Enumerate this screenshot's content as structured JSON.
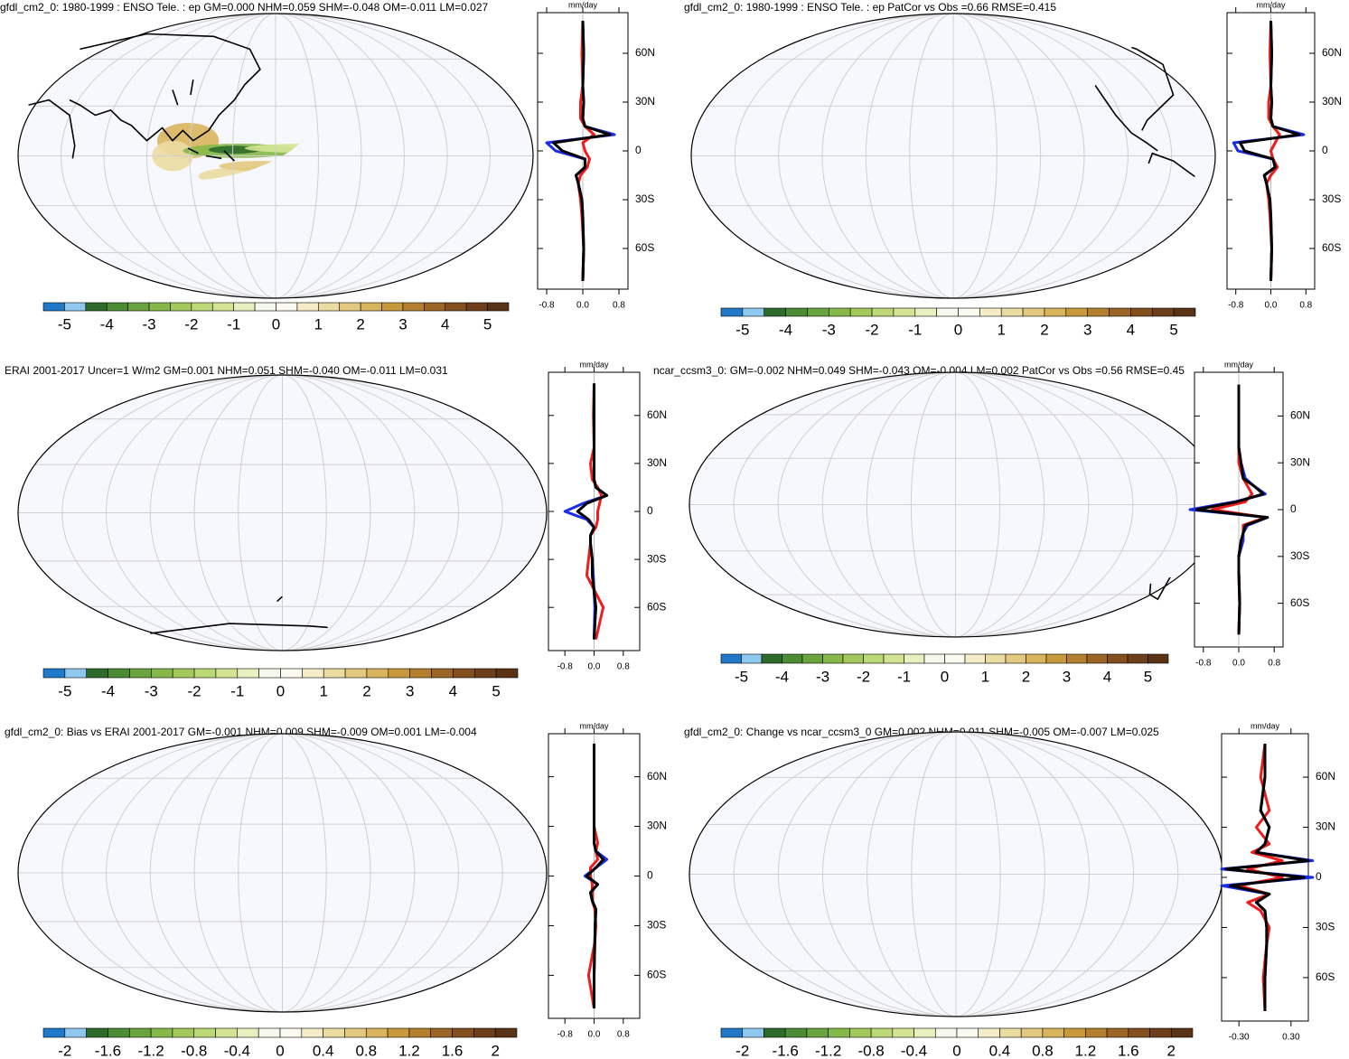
{
  "colors": [
    "#1f78c8",
    "#8fc8ef",
    "#2e6b2a",
    "#4b8c34",
    "#6aa43e",
    "#86b84a",
    "#a3c95c",
    "#bdd877",
    "#d3e594",
    "#e7f0be",
    "#f5f8ec",
    "#fbfaf0",
    "#f4edc7",
    "#ebdca2",
    "#e2c97f",
    "#d8b45c",
    "#c99a3c",
    "#b47f2e",
    "#9b6526",
    "#834f1f",
    "#6c3f1a",
    "#583316"
  ],
  "chart_data": [
    {
      "type": "line",
      "title": "gfdl_cm2_0: 1980-1999 : ENSO Tele. : ep GM=0.000 NHM=0.059 SHM=-0.048 OM=-0.011 LM=0.027",
      "xlabel": "mm/day",
      "colorbar": {
        "lim": [
          -5.5,
          5.5
        ],
        "ticks": [
          -5,
          -4,
          -3,
          -2,
          -1,
          0,
          1,
          2,
          3,
          4,
          5
        ]
      },
      "xlim": [
        -1,
        1
      ],
      "xticks": [
        -0.8,
        {
          "value": 0,
          "label": "0.0"
        },
        0.8
      ],
      "ylim": [
        -85,
        85
      ],
      "yticks": [
        {
          "value": 60,
          "label": "60N"
        },
        {
          "value": 30,
          "label": "30N"
        },
        0,
        {
          "value": -30,
          "label": "30S"
        },
        {
          "value": -60,
          "label": "60S"
        }
      ],
      "y": [
        -80,
        -60,
        -40,
        -30,
        -20,
        -15,
        -10,
        -5,
        0,
        5,
        10,
        15,
        20,
        30,
        40,
        60,
        80
      ],
      "series": [
        {
          "color": "#1a2ee8",
          "values": [
            0,
            0.02,
            0,
            -0.02,
            -0.1,
            -0.15,
            0.05,
            0.05,
            -0.6,
            -0.8,
            0.7,
            0.05,
            0,
            0.02,
            0,
            0.02,
            0
          ]
        },
        {
          "color": "#ee1c1c",
          "values": [
            0,
            0.02,
            -0.02,
            -0.05,
            -0.1,
            -0.05,
            0.1,
            0.15,
            0.05,
            0,
            0.25,
            0.05,
            -0.05,
            -0.05,
            0,
            -0.02,
            0
          ]
        },
        {
          "color": "#000000",
          "values": [
            0,
            0.02,
            0,
            -0.02,
            -0.1,
            -0.15,
            0.05,
            0.05,
            -0.45,
            -0.65,
            0.6,
            0.05,
            0,
            0.02,
            0,
            0.02,
            0
          ]
        }
      ]
    },
    {
      "type": "line",
      "title": "gfdl_cm2_0: 1980-1999 : ENSO Tele. : ep PatCor vs Obs =0.66 RMSE=0.415",
      "xlabel": "mm/day",
      "colorbar": {
        "lim": [
          -5.5,
          5.5
        ],
        "ticks": [
          -5,
          -4,
          -3,
          -2,
          -1,
          0,
          1,
          2,
          3,
          4,
          5
        ]
      },
      "xlim": [
        -1,
        1
      ],
      "xticks": [
        -0.8,
        {
          "value": 0,
          "label": "0.0"
        },
        0.8
      ],
      "ylim": [
        -85,
        85
      ],
      "yticks": [
        {
          "value": 60,
          "label": "60N"
        },
        {
          "value": 30,
          "label": "30N"
        },
        0,
        {
          "value": -30,
          "label": "30S"
        },
        {
          "value": -60,
          "label": "60S"
        }
      ],
      "y": [
        -80,
        -60,
        -40,
        -30,
        -20,
        -15,
        -10,
        -5,
        0,
        5,
        10,
        15,
        20,
        30,
        40,
        60,
        80
      ],
      "series": [
        {
          "color": "#1a2ee8",
          "values": [
            0,
            0.02,
            0,
            -0.02,
            -0.1,
            -0.15,
            0.1,
            0.05,
            -0.75,
            -0.85,
            0.75,
            0.05,
            0,
            0.02,
            0,
            0.02,
            0
          ]
        },
        {
          "color": "#ee1c1c",
          "values": [
            0,
            0.02,
            -0.02,
            -0.05,
            -0.1,
            0,
            0.15,
            0.05,
            0,
            0.1,
            0.2,
            0.05,
            -0.05,
            -0.05,
            0,
            -0.02,
            0
          ]
        },
        {
          "color": "#000000",
          "values": [
            0,
            0.02,
            0,
            -0.02,
            -0.1,
            -0.15,
            0.1,
            0.05,
            -0.6,
            -0.7,
            0.65,
            0.05,
            0,
            0.02,
            0,
            0.02,
            0
          ]
        }
      ]
    },
    {
      "type": "line",
      "title": "ERAI 2001-2017 Uncer=1 W/m2 GM=0.001 NHM=0.051 SHM=-0.040 OM=-0.011 LM=0.031",
      "xlabel": "mm/day",
      "colorbar": {
        "lim": [
          -5.5,
          5.5
        ],
        "ticks": [
          -5,
          -4,
          -3,
          -2,
          -1,
          0,
          1,
          2,
          3,
          4,
          5
        ]
      },
      "xlim": [
        -1.25,
        1.25
      ],
      "xticks": [
        -0.8,
        {
          "value": 0,
          "label": "0.0"
        },
        0.8
      ],
      "ylim": [
        -87,
        87
      ],
      "yticks": [
        {
          "value": 60,
          "label": "60N"
        },
        {
          "value": 30,
          "label": "30N"
        },
        0,
        {
          "value": -30,
          "label": "30S"
        },
        {
          "value": -60,
          "label": "60S"
        }
      ],
      "y": [
        -80,
        -60,
        -40,
        -30,
        -20,
        -15,
        -10,
        -5,
        0,
        5,
        10,
        15,
        20,
        30,
        40,
        60,
        80
      ],
      "series": [
        {
          "color": "#1a2ee8",
          "values": [
            0,
            0.02,
            -0.02,
            -0.05,
            -0.1,
            -0.1,
            0,
            -0.2,
            -0.8,
            -0.3,
            0.35,
            0.05,
            0,
            0,
            0,
            0,
            0
          ]
        },
        {
          "color": "#ee1c1c",
          "values": [
            0.05,
            0.25,
            -0.2,
            -0.15,
            -0.1,
            -0.1,
            0.05,
            0.1,
            0.1,
            0.15,
            0.2,
            0.1,
            -0.05,
            -0.1,
            0,
            -0.02,
            0
          ]
        },
        {
          "color": "#000000",
          "values": [
            0,
            0.05,
            -0.05,
            -0.05,
            -0.1,
            -0.1,
            0,
            -0.15,
            -0.45,
            -0.2,
            0.35,
            0.05,
            0,
            0,
            0,
            0,
            0
          ]
        }
      ]
    },
    {
      "type": "line",
      "title": "ncar_ccsm3_0: GM=-0.002 NHM=0.049 SHM=-0.043 OM=-0.004 LM=0.002 PatCor vs Obs =0.56 RMSE=0.45",
      "xlabel": "mm/day",
      "colorbar": {
        "lim": [
          -5.5,
          5.5
        ],
        "ticks": [
          -5,
          -4,
          -3,
          -2,
          -1,
          0,
          1,
          2,
          3,
          4,
          5
        ]
      },
      "xlim": [
        -1,
        1
      ],
      "xticks": [
        -0.8,
        {
          "value": 0,
          "label": "0.0"
        },
        0.8
      ],
      "ylim": [
        -88,
        88
      ],
      "yticks": [
        {
          "value": 60,
          "label": "60N"
        },
        {
          "value": 30,
          "label": "30N"
        },
        0,
        {
          "value": -30,
          "label": "30S"
        },
        {
          "value": -60,
          "label": "60S"
        }
      ],
      "y": [
        -80,
        -60,
        -40,
        -30,
        -20,
        -15,
        -10,
        -5,
        0,
        5,
        10,
        15,
        20,
        30,
        40,
        60,
        80
      ],
      "series": [
        {
          "color": "#1a2ee8",
          "values": [
            0,
            0.02,
            0,
            0,
            0.1,
            0.1,
            0.2,
            0.65,
            -1.1,
            -0.1,
            0.6,
            0.35,
            0.15,
            0.05,
            0,
            0,
            0
          ]
        },
        {
          "color": "#ee1c1c",
          "values": [
            0,
            0.02,
            0,
            0,
            0.05,
            0.1,
            0.1,
            0.6,
            -0.6,
            0.15,
            0.3,
            0.2,
            0.1,
            0,
            0,
            0,
            0
          ]
        },
        {
          "color": "#000000",
          "values": [
            0,
            0.02,
            0,
            0,
            0.05,
            0.1,
            0.15,
            0.65,
            -0.95,
            -0.05,
            0.55,
            0.35,
            0.1,
            0.05,
            0,
            0,
            0
          ]
        }
      ]
    },
    {
      "type": "line",
      "title": "gfdl_cm2_0: Bias vs ERAI 2001-2017 GM=-0.001 NHM=0.009 SHM=-0.009 OM=0.001 LM=-0.004",
      "xlabel": "mm/day",
      "colorbar": {
        "lim": [
          -2.2,
          2.2
        ],
        "ticks": [
          -2,
          -1.6,
          -1.2,
          -0.8,
          -0.4,
          0,
          0.4,
          0.8,
          1.2,
          1.6,
          2
        ]
      },
      "xlim": [
        -1.25,
        1.25
      ],
      "xticks": [
        -0.8,
        {
          "value": 0,
          "label": "0.0"
        },
        0.8
      ],
      "ylim": [
        -86,
        86
      ],
      "yticks": [
        {
          "value": 60,
          "label": "60N"
        },
        {
          "value": 30,
          "label": "30N"
        },
        0,
        {
          "value": -30,
          "label": "30S"
        },
        {
          "value": -60,
          "label": "60S"
        }
      ],
      "y": [
        -80,
        -60,
        -40,
        -30,
        -20,
        -15,
        -10,
        -5,
        0,
        5,
        10,
        15,
        20,
        30,
        40,
        60,
        80
      ],
      "series": [
        {
          "color": "#1a2ee8",
          "values": [
            0,
            0,
            0.02,
            0.03,
            0.05,
            -0.05,
            -0.1,
            0.1,
            -0.25,
            0.05,
            0.35,
            0.05,
            0,
            0,
            0,
            0,
            0
          ]
        },
        {
          "color": "#ee1c1c",
          "values": [
            0,
            -0.15,
            0.02,
            0.05,
            0.02,
            -0.05,
            -0.05,
            -0.05,
            -0.1,
            -0.1,
            0.1,
            0.05,
            0.1,
            0,
            0,
            0,
            0
          ]
        },
        {
          "color": "#000000",
          "values": [
            0,
            0,
            0.02,
            0.03,
            0.05,
            -0.05,
            -0.1,
            0.1,
            -0.2,
            0.05,
            0.25,
            0.05,
            0,
            0,
            0,
            0,
            0
          ]
        }
      ]
    },
    {
      "type": "line",
      "title": "gfdl_cm2_0: Change vs ncar_ccsm3_0 GM=0.002 NHM=0.011 SHM=-0.005 OM=-0.007 LM=0.025",
      "xlabel": "mm/day",
      "colorbar": {
        "lim": [
          -2.2,
          2.2
        ],
        "ticks": [
          -2,
          -1.6,
          -1.2,
          -0.8,
          -0.4,
          0,
          0.4,
          0.8,
          1.2,
          1.6,
          2
        ]
      },
      "xlim": [
        -0.5,
        0.5
      ],
      "xticks": [
        {
          "value": -0.3,
          "label": "-0.30"
        },
        {
          "value": 0.3,
          "label": "0.30"
        }
      ],
      "ylim": [
        -86,
        86
      ],
      "yticks": [
        {
          "value": 60,
          "label": "60N"
        },
        {
          "value": 30,
          "label": "30N"
        },
        0,
        {
          "value": -30,
          "label": "30S"
        },
        {
          "value": -60,
          "label": "60S"
        }
      ],
      "y": [
        -80,
        -60,
        -40,
        -30,
        -20,
        -15,
        -10,
        -5,
        0,
        5,
        10,
        15,
        20,
        30,
        40,
        60,
        80
      ],
      "series": [
        {
          "color": "#1a2ee8",
          "values": [
            0,
            0,
            0.02,
            0.02,
            0,
            -0.1,
            0.05,
            -0.5,
            0.55,
            -0.5,
            0.55,
            -0.1,
            0,
            0.05,
            -0.05,
            0,
            0
          ]
        },
        {
          "color": "#ee1c1c",
          "values": [
            0,
            -0.02,
            0.02,
            0.05,
            -0.05,
            -0.2,
            0.05,
            -0.3,
            0.2,
            -0.2,
            0.2,
            -0.15,
            0.05,
            -0.1,
            0.05,
            -0.05,
            0
          ]
        },
        {
          "color": "#000000",
          "values": [
            0,
            0,
            0.02,
            0.02,
            0,
            -0.1,
            0.05,
            -0.4,
            0.45,
            -0.45,
            0.5,
            -0.1,
            0,
            0.05,
            -0.05,
            0,
            0
          ]
        }
      ]
    }
  ]
}
